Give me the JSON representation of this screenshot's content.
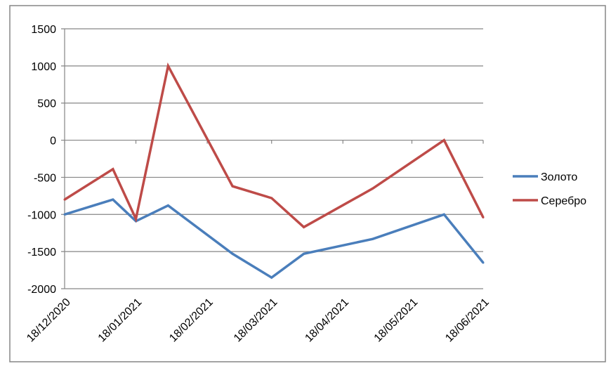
{
  "chart_data": {
    "type": "line",
    "title": "",
    "xlabel": "",
    "ylabel": "",
    "ylim": [
      -2000,
      1500
    ],
    "yticks": [
      1500,
      1000,
      500,
      0,
      -500,
      -1000,
      -1500,
      -2000
    ],
    "ytick_labels": [
      "1500",
      "1000",
      "500",
      "0",
      "-500",
      "-1000",
      "-1500",
      "-2000"
    ],
    "xlim": [
      "2020-12-18",
      "2021-06-18"
    ],
    "xticks": [
      "2020-12-18",
      "2021-01-18",
      "2021-02-18",
      "2021-03-18",
      "2021-04-18",
      "2021-05-18",
      "2021-06-18"
    ],
    "xtick_labels": [
      "18/12/2020",
      "18/01/2021",
      "18/02/2021",
      "18/03/2021",
      "18/04/2021",
      "18/05/2021",
      "18/06/2021"
    ],
    "x": [
      "2020-12-18",
      "2021-01-08",
      "2021-01-18",
      "2021-02-01",
      "2021-03-01",
      "2021-03-18",
      "2021-04-01",
      "2021-05-01",
      "2021-06-01",
      "2021-06-18"
    ],
    "series": [
      {
        "name": "Золото",
        "color": "#4a7ebb",
        "values": [
          -1000,
          -800,
          -1090,
          -880,
          -1530,
          -1850,
          -1530,
          -1330,
          -1000,
          -1650
        ]
      },
      {
        "name": "Серебро",
        "color": "#be4b48",
        "values": [
          -800,
          -390,
          -1060,
          1000,
          -620,
          -780,
          -1170,
          -650,
          0,
          -1040
        ]
      }
    ],
    "grid": true,
    "legend_position": "right"
  }
}
